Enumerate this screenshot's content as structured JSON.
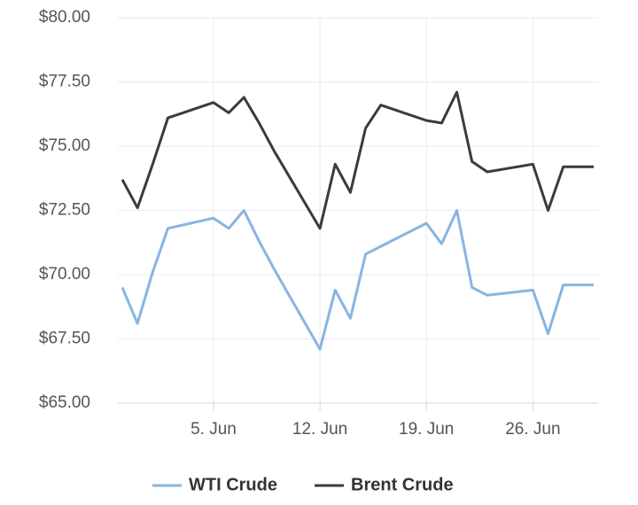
{
  "chart_data": {
    "type": "line",
    "x": [
      "30. May",
      "31. May",
      "1. Jun",
      "2. Jun",
      "5. Jun",
      "6. Jun",
      "7. Jun",
      "8. Jun",
      "9. Jun",
      "12. Jun",
      "13. Jun",
      "14. Jun",
      "15. Jun",
      "16. Jun",
      "19. Jun",
      "20. Jun",
      "21. Jun",
      "22. Jun",
      "23. Jun",
      "26. Jun",
      "27. Jun",
      "28. Jun",
      "30. Jun"
    ],
    "series": [
      {
        "name": "WTI Crude",
        "color": "#88b4e2",
        "values": [
          69.5,
          68.1,
          70.1,
          71.8,
          72.2,
          71.8,
          72.5,
          71.3,
          70.2,
          67.1,
          69.4,
          68.3,
          70.8,
          71.1,
          72.0,
          71.2,
          72.5,
          69.5,
          69.2,
          69.4,
          67.7,
          69.6,
          69.6
        ]
      },
      {
        "name": "Brent Crude",
        "color": "#3b3b3b",
        "values": [
          73.7,
          72.6,
          74.3,
          76.1,
          76.7,
          76.3,
          76.9,
          75.9,
          74.8,
          71.8,
          74.3,
          73.2,
          75.7,
          76.6,
          76.0,
          75.9,
          77.1,
          74.4,
          74.0,
          74.3,
          72.5,
          74.2,
          74.2
        ]
      }
    ],
    "xlim": [
      "30. May",
      "30. Jun"
    ],
    "xticks": [
      "5. Jun",
      "12. Jun",
      "19. Jun",
      "26. Jun"
    ],
    "ylim": [
      65,
      80
    ],
    "yticks": [
      {
        "value": 65,
        "label": "$65.00"
      },
      {
        "value": 67.5,
        "label": "$67.50"
      },
      {
        "value": 70,
        "label": "$70.00"
      },
      {
        "value": 72.5,
        "label": "$72.50"
      },
      {
        "value": 75,
        "label": "$75.00"
      },
      {
        "value": 77.5,
        "label": "$77.50"
      },
      {
        "value": 80,
        "label": "$80.00"
      }
    ],
    "grid": true,
    "legend": "bottom"
  }
}
